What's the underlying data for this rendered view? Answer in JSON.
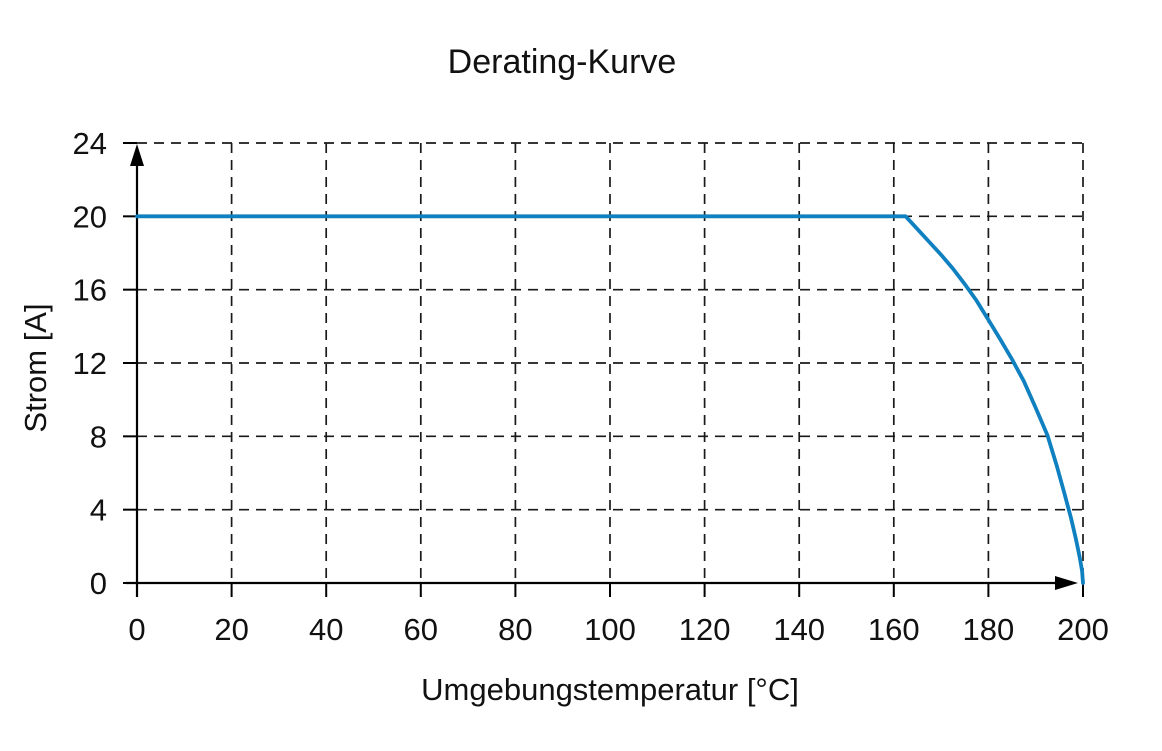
{
  "page": {
    "background": "#ffffff"
  },
  "style": {
    "axis_color": "#000000",
    "grid_color": "#1a1a1a",
    "text_color": "#111111"
  },
  "chart_data": {
    "type": "line",
    "title": "Derating-Kurve",
    "xlabel": "Umgebungstemperatur [°C]",
    "ylabel": "Strom [A]",
    "xlim": [
      0,
      200
    ],
    "ylim": [
      0,
      24
    ],
    "x_ticks": [
      0,
      20,
      40,
      60,
      80,
      100,
      120,
      140,
      160,
      180,
      200
    ],
    "y_ticks": [
      0,
      4,
      8,
      12,
      16,
      20,
      24
    ],
    "grid": "dashed",
    "legend": "none",
    "series": [
      {
        "name": "Strom",
        "color": "#0f80c0",
        "points": [
          [
            0,
            20
          ],
          [
            162.5,
            20
          ],
          [
            165,
            19.3
          ],
          [
            167.5,
            18.6
          ],
          [
            170,
            17.9
          ],
          [
            172.5,
            17.15
          ],
          [
            175,
            16.3
          ],
          [
            177.5,
            15.4
          ],
          [
            180,
            14.35
          ],
          [
            182.5,
            13.3
          ],
          [
            185,
            12.2
          ],
          [
            187.5,
            11.0
          ],
          [
            190,
            9.55
          ],
          [
            192.5,
            8.05
          ],
          [
            194.5,
            6.35
          ],
          [
            196,
            4.95
          ],
          [
            197.5,
            3.5
          ],
          [
            198.5,
            2.4
          ],
          [
            199.3,
            1.4
          ],
          [
            199.8,
            0.65
          ],
          [
            200,
            0
          ]
        ]
      }
    ]
  }
}
